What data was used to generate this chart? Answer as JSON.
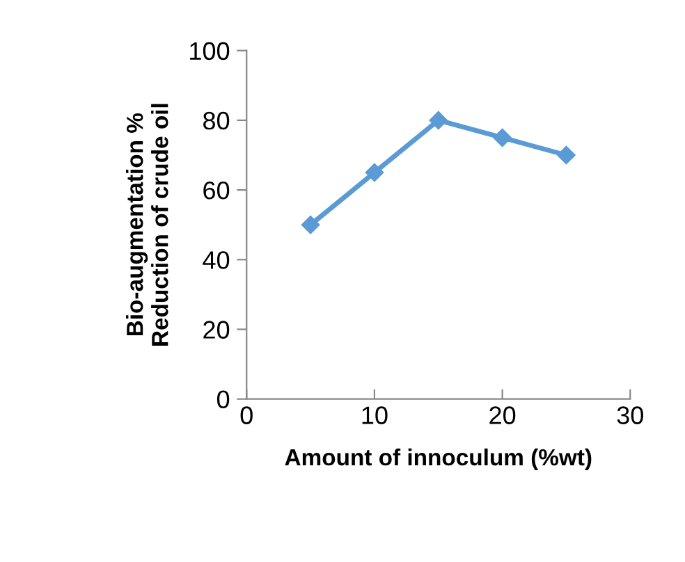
{
  "chart_data": {
    "type": "line",
    "xlabel": "Amount of innoculum (%wt)",
    "ylabel": "Bio-augmentation %\nReduction of crude oil",
    "x": [
      5,
      10,
      15,
      20,
      25
    ],
    "series": [
      {
        "color": "#5b9bd5",
        "values": [
          50,
          65,
          80,
          75,
          70
        ]
      }
    ],
    "xlim": [
      0,
      30
    ],
    "xticks": [
      0,
      10,
      20,
      30
    ],
    "ylim": [
      0,
      100
    ],
    "yticks": [
      0,
      20,
      40,
      60,
      80,
      100
    ],
    "grid": false,
    "legend": false,
    "marker": "diamond",
    "line_style": "solid"
  }
}
